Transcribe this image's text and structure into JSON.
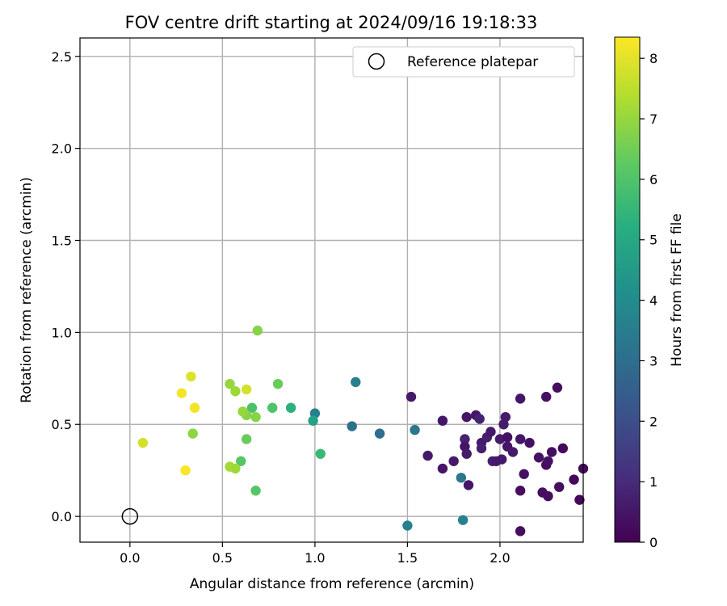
{
  "chart_data": {
    "type": "scatter",
    "title": "FOV centre drift starting at 2024/09/16 19:18:33",
    "xlabel": "Angular distance from reference (arcmin)",
    "ylabel": "Rotation from reference (arcmin)",
    "xlim": [
      -0.27,
      2.45
    ],
    "ylim": [
      -0.14,
      2.6
    ],
    "xticks": [
      "0.0",
      "0.5",
      "1.0",
      "1.5",
      "2.0"
    ],
    "xtick_values": [
      0,
      0.5,
      1.0,
      1.5,
      2.0
    ],
    "yticks": [
      "0.0",
      "0.5",
      "1.0",
      "1.5",
      "2.0",
      "2.5"
    ],
    "ytick_values": [
      0,
      0.5,
      1.0,
      1.5,
      2.0,
      2.5
    ],
    "grid": true,
    "legend": {
      "label": "Reference platepar",
      "placement": "top-right"
    },
    "reference": {
      "x": 0.0,
      "y": 0.0
    },
    "colorbar": {
      "label": "Hours from first FF file",
      "range": [
        0,
        8.35
      ],
      "ticks": [
        "0",
        "1",
        "2",
        "3",
        "4",
        "5",
        "6",
        "7",
        "8"
      ],
      "tick_values": [
        0,
        1,
        2,
        3,
        4,
        5,
        6,
        7,
        8
      ],
      "colormap": "viridis"
    },
    "points": [
      {
        "x": 1.52,
        "y": 0.65,
        "h": 0.6
      },
      {
        "x": 1.61,
        "y": 0.33,
        "h": 0.6
      },
      {
        "x": 1.69,
        "y": 0.52,
        "h": 0.5
      },
      {
        "x": 1.69,
        "y": 0.26,
        "h": 0.5
      },
      {
        "x": 1.75,
        "y": 0.3,
        "h": 0.6
      },
      {
        "x": 1.81,
        "y": 0.42,
        "h": 0.8
      },
      {
        "x": 1.81,
        "y": 0.38,
        "h": 0.5
      },
      {
        "x": 1.82,
        "y": 0.54,
        "h": 0.5
      },
      {
        "x": 1.82,
        "y": 0.34,
        "h": 0.6
      },
      {
        "x": 1.83,
        "y": 0.17,
        "h": 0.5
      },
      {
        "x": 1.87,
        "y": 0.55,
        "h": 0.5
      },
      {
        "x": 1.89,
        "y": 0.53,
        "h": 0.8
      },
      {
        "x": 1.9,
        "y": 0.4,
        "h": 0.6
      },
      {
        "x": 1.9,
        "y": 0.37,
        "h": 0.7
      },
      {
        "x": 1.93,
        "y": 0.43,
        "h": 0.7
      },
      {
        "x": 1.95,
        "y": 0.46,
        "h": 0.6
      },
      {
        "x": 1.96,
        "y": 0.3,
        "h": 0.7
      },
      {
        "x": 1.98,
        "y": 0.3,
        "h": 0.6
      },
      {
        "x": 2.0,
        "y": 0.42,
        "h": 0.6
      },
      {
        "x": 2.01,
        "y": 0.31,
        "h": 0.6
      },
      {
        "x": 2.02,
        "y": 0.5,
        "h": 0.6
      },
      {
        "x": 2.03,
        "y": 0.54,
        "h": 0.6
      },
      {
        "x": 2.04,
        "y": 0.43,
        "h": 0.4
      },
      {
        "x": 2.04,
        "y": 0.38,
        "h": 0.5
      },
      {
        "x": 2.07,
        "y": 0.35,
        "h": 0.6
      },
      {
        "x": 2.11,
        "y": 0.64,
        "h": 0.5
      },
      {
        "x": 2.11,
        "y": 0.42,
        "h": 0.5
      },
      {
        "x": 2.11,
        "y": 0.14,
        "h": 0.3
      },
      {
        "x": 2.11,
        "y": -0.08,
        "h": 0.3
      },
      {
        "x": 2.13,
        "y": 0.23,
        "h": 0.4
      },
      {
        "x": 2.16,
        "y": 0.4,
        "h": 0.4
      },
      {
        "x": 2.21,
        "y": 0.32,
        "h": 0.4
      },
      {
        "x": 2.23,
        "y": 0.13,
        "h": 0.3
      },
      {
        "x": 2.25,
        "y": 0.65,
        "h": 0.4
      },
      {
        "x": 2.25,
        "y": 0.28,
        "h": 0.3
      },
      {
        "x": 2.26,
        "y": 0.11,
        "h": 0.3
      },
      {
        "x": 2.26,
        "y": 0.3,
        "h": 0.4
      },
      {
        "x": 2.28,
        "y": 0.35,
        "h": 0.3
      },
      {
        "x": 2.31,
        "y": 0.7,
        "h": 0.3
      },
      {
        "x": 2.32,
        "y": 0.16,
        "h": 0.3
      },
      {
        "x": 2.34,
        "y": 0.37,
        "h": 0.2
      },
      {
        "x": 2.4,
        "y": 0.2,
        "h": 0.2
      },
      {
        "x": 2.43,
        "y": 0.09,
        "h": 0.2
      },
      {
        "x": 2.45,
        "y": 0.26,
        "h": 0.2
      },
      {
        "x": 1.0,
        "y": 0.56,
        "h": 3.6
      },
      {
        "x": 1.2,
        "y": 0.49,
        "h": 3.1
      },
      {
        "x": 1.22,
        "y": 0.73,
        "h": 3.6
      },
      {
        "x": 1.35,
        "y": 0.45,
        "h": 3.0
      },
      {
        "x": 1.54,
        "y": 0.47,
        "h": 3.3
      },
      {
        "x": 1.79,
        "y": 0.21,
        "h": 3.3
      },
      {
        "x": 1.5,
        "y": -0.05,
        "h": 3.6
      },
      {
        "x": 1.8,
        "y": -0.02,
        "h": 3.6
      },
      {
        "x": 0.99,
        "y": 0.52,
        "h": 4.8
      },
      {
        "x": 1.03,
        "y": 0.34,
        "h": 5.6
      },
      {
        "x": 0.87,
        "y": 0.59,
        "h": 5.3
      },
      {
        "x": 0.77,
        "y": 0.59,
        "h": 6.0
      },
      {
        "x": 0.66,
        "y": 0.59,
        "h": 5.9
      },
      {
        "x": 0.8,
        "y": 0.72,
        "h": 6.4
      },
      {
        "x": 0.6,
        "y": 0.3,
        "h": 6.1
      },
      {
        "x": 0.68,
        "y": 0.14,
        "h": 6.1
      },
      {
        "x": 0.63,
        "y": 0.42,
        "h": 6.4
      },
      {
        "x": 0.69,
        "y": 1.01,
        "h": 6.8
      },
      {
        "x": 0.68,
        "y": 0.54,
        "h": 6.8
      },
      {
        "x": 0.63,
        "y": 0.55,
        "h": 6.8
      },
      {
        "x": 0.61,
        "y": 0.57,
        "h": 7.0
      },
      {
        "x": 0.54,
        "y": 0.72,
        "h": 7.0
      },
      {
        "x": 0.57,
        "y": 0.68,
        "h": 7.1
      },
      {
        "x": 0.54,
        "y": 0.27,
        "h": 7.2
      },
      {
        "x": 0.57,
        "y": 0.26,
        "h": 7.1
      },
      {
        "x": 0.34,
        "y": 0.45,
        "h": 6.9
      },
      {
        "x": 0.63,
        "y": 0.69,
        "h": 7.8
      },
      {
        "x": 0.33,
        "y": 0.76,
        "h": 7.9
      },
      {
        "x": 0.35,
        "y": 0.59,
        "h": 8.2
      },
      {
        "x": 0.28,
        "y": 0.67,
        "h": 8.2
      },
      {
        "x": 0.3,
        "y": 0.25,
        "h": 8.3
      },
      {
        "x": 0.07,
        "y": 0.4,
        "h": 7.8
      }
    ]
  }
}
